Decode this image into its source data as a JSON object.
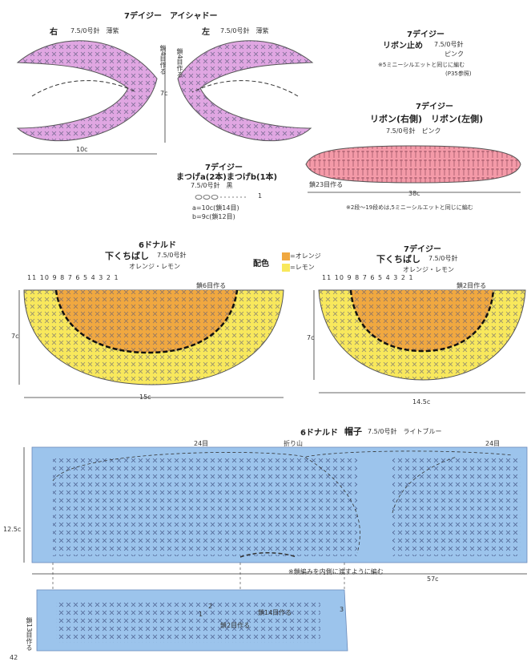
{
  "eyeshadow": {
    "num": "7",
    "title_suffix": "デイジー　アイシャドー",
    "right_label": "右",
    "right_spec": "7.5/0号針　薄紫",
    "left_label": "左",
    "left_spec": "7.5/0号針　薄紫",
    "chain_note": "鎖4目作る",
    "chain_note_left": "鎖4目作る",
    "height": "7c",
    "width": "10c",
    "color": "#e0a6e2"
  },
  "ribbon_stop": {
    "num": "7",
    "title_suffix": "デイジー",
    "title": "リボン止め",
    "spec": "7.5/0号針",
    "color_name": "ピンク",
    "note_mark": "※",
    "note_num": "5",
    "note_text": "ミニーシルエットと同じに編む",
    "note_ref": "(P35参照)"
  },
  "ribbon": {
    "num": "7",
    "title_suffix": "デイジー",
    "title": "リボン(右側)　リボン(左側)",
    "spec": "7.5/0号針　ピンク",
    "chain_note": "鎖23目作る",
    "width": "38c",
    "note_a": "※2段〜19段めは,",
    "note_num": "5",
    "note_b": "ミニーシルエットと同じに編む",
    "color": "#f49aa8"
  },
  "lashes": {
    "num": "7",
    "title_suffix": "デイジー",
    "title": "まつげa(2本)まつげb(1本)",
    "spec": "7.5/0号針　黒",
    "a": "a=10c(鎖14目)",
    "b": "b=9c(鎖12目)",
    "one": "1"
  },
  "lips_donald": {
    "num": "6",
    "title_suffix": "ドナルド",
    "title": "下くちばし",
    "spec": "7.5/0号針",
    "colors": "オレンジ・レモン",
    "rows": "11 10 9 8 7 6 5 4 3 2 1",
    "chain_note": "鎖6目作る",
    "height": "7c",
    "width": "15c"
  },
  "palette": {
    "label": "配色",
    "orange": "=オレンジ",
    "lemon": "=レモン",
    "orange_color": "#f0a840",
    "lemon_color": "#f8e85c"
  },
  "lips_daisy": {
    "num": "7",
    "title_suffix": "デイジー",
    "title": "下くちばし",
    "spec": "7.5/0号針",
    "colors": "オレンジ・レモン",
    "rows": "11 10 9 8 7 6 5 4 3 2 1",
    "chain_note": "鎖2目作る",
    "height": "7c",
    "width": "14.5c"
  },
  "hat": {
    "num": "6",
    "title_suffix": "ドナルド",
    "title": "帽子",
    "spec": "7.5/0号針　ライトブルー",
    "left_count": "24目",
    "fold": "折り山",
    "right_count": "24目",
    "height": "12.5c",
    "note": "※鎖編みを内側に渡すように編む",
    "width": "57c",
    "chain_bottom": "鎖14目作る",
    "chain_mid": "鎖2目作る",
    "chain_side": "鎖13目作る",
    "n1": "1",
    "n2": "2",
    "n3": "3",
    "color": "#9cc4ec"
  },
  "page_number": "42"
}
